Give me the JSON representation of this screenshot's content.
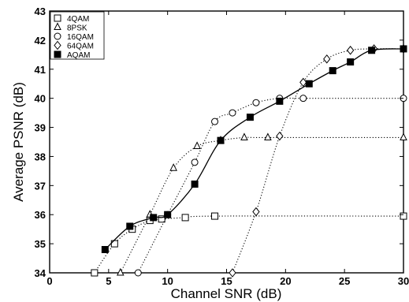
{
  "chart_data": {
    "type": "line",
    "title": "",
    "xlabel": "Channel SNR (dB)",
    "ylabel": "Average PSNR (dB)",
    "xlim": [
      0,
      30
    ],
    "ylim": [
      34,
      43
    ],
    "xticks": [
      "0",
      "5",
      "10",
      "15",
      "20",
      "25",
      "30"
    ],
    "yticks": [
      "34",
      "35",
      "36",
      "37",
      "38",
      "39",
      "40",
      "41",
      "42",
      "43"
    ],
    "grid": false,
    "legend_position": "top-left",
    "series": [
      {
        "name": "4QAM",
        "marker": "square-open",
        "line": "dotted",
        "x": [
          3.8,
          5.5,
          7,
          8.5,
          9.5,
          11.5,
          14,
          30
        ],
        "y": [
          34,
          35.0,
          35.5,
          35.8,
          35.85,
          35.9,
          35.95,
          35.95
        ]
      },
      {
        "name": "8PSK",
        "marker": "triangle-open",
        "line": "dotted",
        "x": [
          6,
          8.5,
          10.5,
          12.5,
          14.5,
          16.5,
          18.5,
          30
        ],
        "y": [
          34,
          36.0,
          37.6,
          38.35,
          38.55,
          38.65,
          38.65,
          38.65
        ]
      },
      {
        "name": "16QAM",
        "marker": "circle-open",
        "line": "dotted",
        "x": [
          7.5,
          10,
          12.3,
          14,
          15.5,
          17.5,
          19.5,
          21.5,
          30
        ],
        "y": [
          34,
          36.0,
          37.8,
          39.2,
          39.5,
          39.85,
          40.0,
          40.0,
          40.0
        ]
      },
      {
        "name": "64QAM",
        "marker": "diamond-open",
        "line": "dotted",
        "x": [
          15.5,
          17.5,
          19.5,
          21.5,
          23.5,
          25.5,
          27.5,
          30
        ],
        "y": [
          34,
          36.1,
          38.7,
          40.55,
          41.35,
          41.65,
          41.7,
          41.7
        ]
      },
      {
        "name": "AQAM",
        "marker": "square-filled",
        "line": "solid",
        "x": [
          4.7,
          6.8,
          8.8,
          10,
          12.3,
          14.5,
          17,
          19.5,
          22,
          24,
          25.5,
          27.3,
          30
        ],
        "y": [
          34.8,
          35.6,
          35.9,
          36.0,
          37.05,
          38.55,
          39.35,
          39.9,
          40.5,
          40.95,
          41.25,
          41.65,
          41.7
        ]
      }
    ]
  }
}
